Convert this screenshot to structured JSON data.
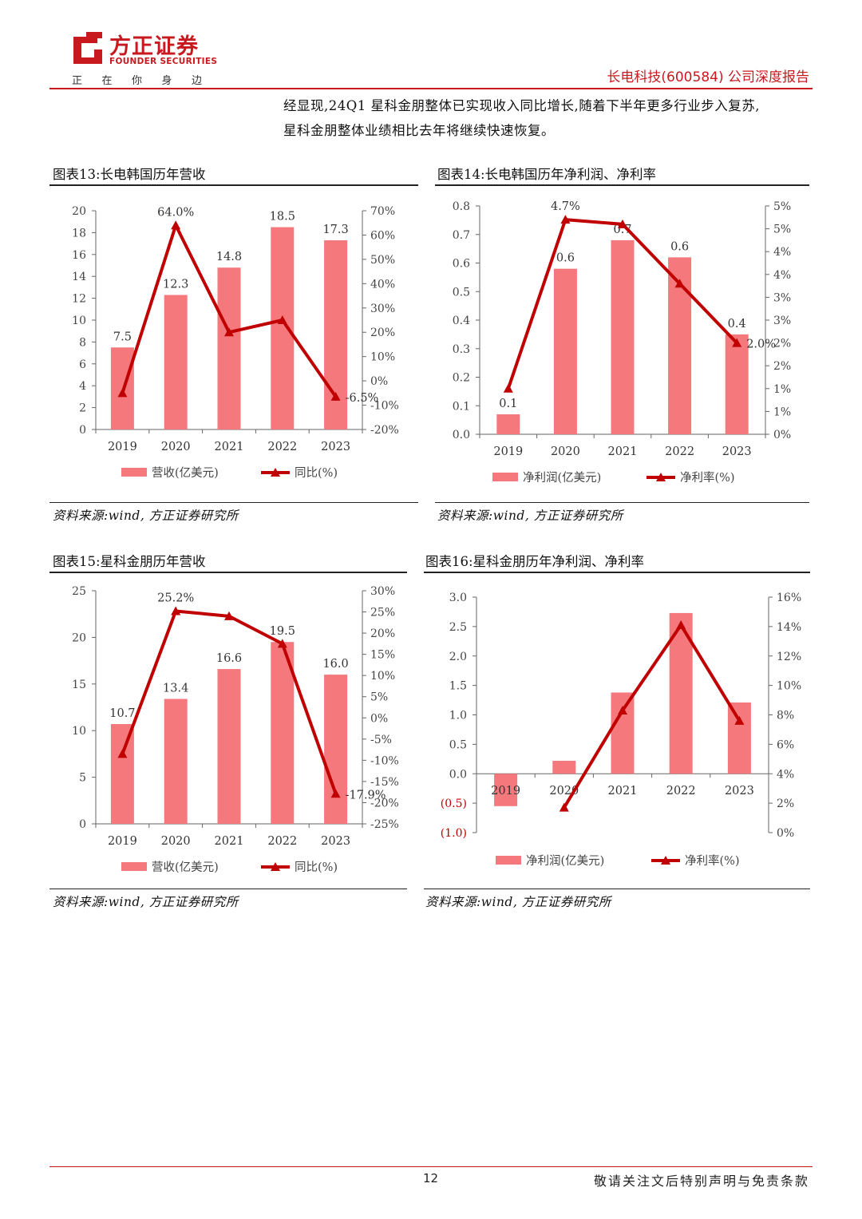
{
  "header": {
    "logo_cn": "方正证券",
    "logo_en": "FOUNDER SECURITIES",
    "slogan": [
      "正",
      "在",
      "你",
      "身",
      "边"
    ],
    "report_title": "长电科技(600584) 公司深度报告"
  },
  "intro_lines": [
    "经显现,24Q1 星科金朋整体已实现收入同比增长,随着下半年更多行业步入复苏,",
    "星科金朋整体业绩相比去年将继续快速恢复。"
  ],
  "charts": [
    {
      "title": "图表13:长电韩国历年营收",
      "source": "资料来源:wind, 方正证券研究所",
      "legend": [
        "营收(亿美元)",
        "同比(%)"
      ],
      "colors": {
        "bar": "#f4787c",
        "line": "#c00000"
      }
    },
    {
      "title": "图表14:长电韩国历年净利润、净利率",
      "source": "资料来源:wind, 方正证券研究所",
      "legend": [
        "净利润(亿美元)",
        "净利率(%)"
      ],
      "colors": {
        "bar": "#f4787c",
        "line": "#c00000"
      }
    },
    {
      "title": "图表15:星科金朋历年营收",
      "source": "资料来源:wind, 方正证券研究所",
      "legend": [
        "营收(亿美元)",
        "同比(%)"
      ],
      "colors": {
        "bar": "#f4787c",
        "line": "#c00000"
      }
    },
    {
      "title": "图表16:星科金朋历年净利润、净利率",
      "source": "资料来源:wind, 方正证券研究所",
      "legend": [
        "净利润(亿美元)",
        "净利率(%)"
      ],
      "colors": {
        "bar": "#f4787c",
        "line": "#c00000"
      }
    }
  ],
  "chart_data": [
    {
      "type": "bar",
      "categories": [
        "2019",
        "2020",
        "2021",
        "2022",
        "2023"
      ],
      "series": [
        {
          "name": "营收(亿美元)",
          "axis": "left",
          "kind": "bar",
          "values": [
            7.5,
            12.3,
            14.8,
            18.5,
            17.3
          ],
          "labels": [
            "7.5",
            "12.3",
            "14.8",
            "18.5",
            "17.3"
          ]
        },
        {
          "name": "同比(%)",
          "axis": "right",
          "kind": "line",
          "values": [
            -5,
            64.0,
            20,
            25,
            -6.5
          ],
          "labels": [
            "",
            "64.0%",
            "",
            "",
            "-6.5%"
          ]
        }
      ],
      "y_left": {
        "min": 0,
        "max": 20,
        "ticks": [
          "0",
          "2",
          "4",
          "6",
          "8",
          "10",
          "12",
          "14",
          "16",
          "18",
          "20"
        ]
      },
      "y_right": {
        "min": -20,
        "max": 70,
        "ticks": [
          "-20%",
          "-10%",
          "0%",
          "10%",
          "20%",
          "30%",
          "40%",
          "50%",
          "60%",
          "70%"
        ]
      },
      "grid": false,
      "legend_position": "bottom"
    },
    {
      "type": "bar",
      "categories": [
        "2019",
        "2020",
        "2021",
        "2022",
        "2023"
      ],
      "series": [
        {
          "name": "净利润(亿美元)",
          "axis": "left",
          "kind": "bar",
          "values": [
            0.07,
            0.58,
            0.68,
            0.62,
            0.35
          ],
          "labels": [
            "0.1",
            "0.6",
            "0.7",
            "0.6",
            "0.4"
          ]
        },
        {
          "name": "净利率(%)",
          "axis": "right",
          "kind": "line",
          "values": [
            1.0,
            4.7,
            4.6,
            3.3,
            2.0
          ],
          "labels": [
            "",
            "4.7%",
            "",
            "",
            "2.0%"
          ]
        }
      ],
      "y_left": {
        "min": 0,
        "max": 0.8,
        "ticks": [
          "0.0",
          "0.1",
          "0.2",
          "0.3",
          "0.4",
          "0.5",
          "0.6",
          "0.7",
          "0.8"
        ]
      },
      "y_right": {
        "min": 0,
        "max": 5,
        "ticks": [
          "0%",
          "1%",
          "1%",
          "2%",
          "2%",
          "3%",
          "3%",
          "4%",
          "4%",
          "5%",
          "5%"
        ]
      },
      "grid": false,
      "legend_position": "bottom"
    },
    {
      "type": "bar",
      "categories": [
        "2019",
        "2020",
        "2021",
        "2022",
        "2023"
      ],
      "series": [
        {
          "name": "营收(亿美元)",
          "axis": "left",
          "kind": "bar",
          "values": [
            10.7,
            13.4,
            16.6,
            19.5,
            16.0
          ],
          "labels": [
            "10.7",
            "13.4",
            "16.6",
            "19.5",
            "16.0"
          ]
        },
        {
          "name": "同比(%)",
          "axis": "right",
          "kind": "line",
          "values": [
            -8.5,
            25.2,
            24.0,
            17.5,
            -17.9
          ],
          "labels": [
            "",
            "25.2%",
            "",
            "",
            "-17.9%"
          ]
        }
      ],
      "y_left": {
        "min": 0,
        "max": 25,
        "ticks": [
          "0",
          "5",
          "10",
          "15",
          "20",
          "25"
        ]
      },
      "y_right": {
        "min": -25,
        "max": 30,
        "ticks": [
          "-25%",
          "-20%",
          "-15%",
          "-10%",
          "-5%",
          "0%",
          "5%",
          "10%",
          "15%",
          "20%",
          "25%",
          "30%"
        ]
      },
      "grid": false,
      "legend_position": "bottom"
    },
    {
      "type": "bar",
      "categories": [
        "2019",
        "2020",
        "2021",
        "2022",
        "2023"
      ],
      "series": [
        {
          "name": "净利润(亿美元)",
          "axis": "left",
          "kind": "bar",
          "values": [
            -0.55,
            0.22,
            1.38,
            2.73,
            1.21
          ],
          "labels": [
            "",
            "",
            "",
            "",
            ""
          ]
        },
        {
          "name": "净利率(%)",
          "axis": "right",
          "kind": "line",
          "values": [
            null,
            1.7,
            8.3,
            14.1,
            7.6
          ],
          "labels": [
            "",
            "",
            "",
            "",
            ""
          ]
        }
      ],
      "y_left": {
        "min": -1.0,
        "max": 3.0,
        "ticks": [
          "(1.0)",
          "(0.5)",
          "0.0",
          "0.5",
          "1.0",
          "1.5",
          "2.0",
          "2.5",
          "3.0"
        ]
      },
      "y_right": {
        "min": 0,
        "max": 16,
        "ticks": [
          "0%",
          "2%",
          "4%",
          "6%",
          "8%",
          "10%",
          "12%",
          "14%",
          "16%"
        ]
      },
      "grid": false,
      "legend_position": "bottom"
    }
  ],
  "footer": {
    "page_number": "12",
    "disclaimer": "敬请关注文后特别声明与免责条款"
  }
}
